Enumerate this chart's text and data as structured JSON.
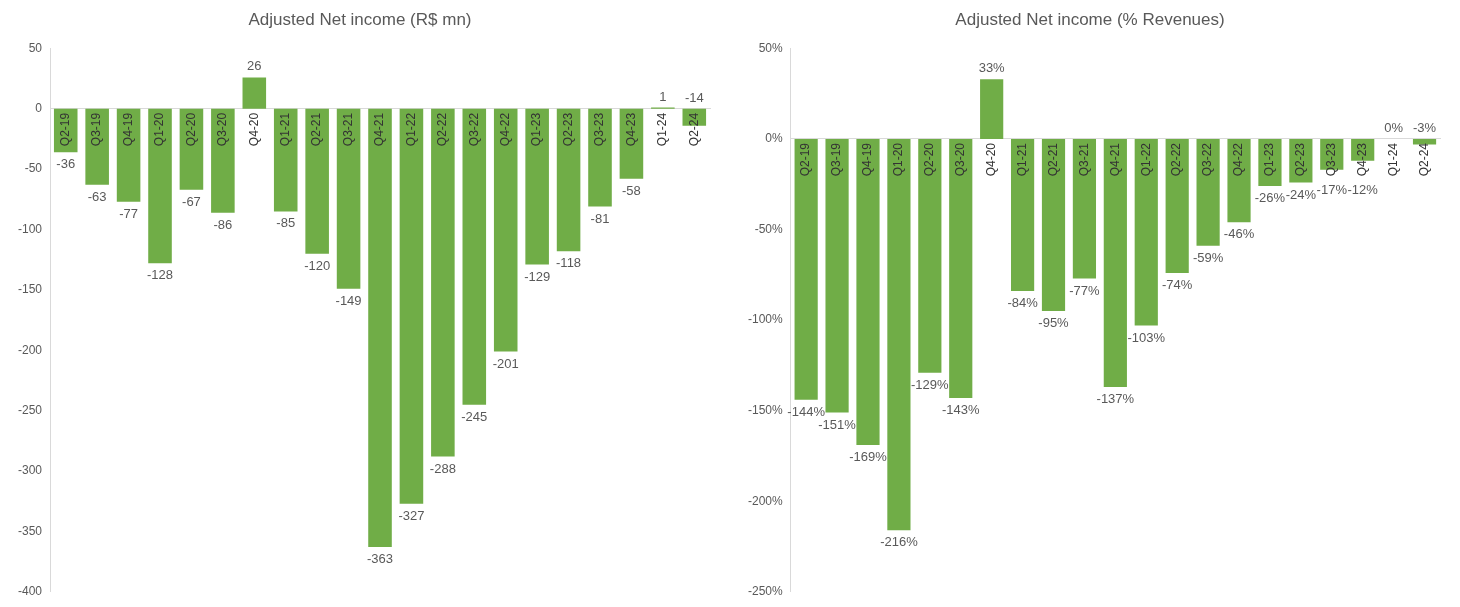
{
  "chart_data": [
    {
      "type": "bar",
      "title": "Adjusted Net income (R$ mn)",
      "categories": [
        "Q2-19",
        "Q3-19",
        "Q4-19",
        "Q1-20",
        "Q2-20",
        "Q3-20",
        "Q4-20",
        "Q1-21",
        "Q2-21",
        "Q3-21",
        "Q4-21",
        "Q1-22",
        "Q2-22",
        "Q3-22",
        "Q4-22",
        "Q1-23",
        "Q2-23",
        "Q3-23",
        "Q4-23",
        "Q1-24",
        "Q2-24"
      ],
      "series": [
        {
          "color": "#70ad47",
          "values": [
            -36,
            -63,
            -77,
            -128,
            -67,
            -86,
            26,
            -85,
            -120,
            -149,
            -363,
            -327,
            -288,
            -245,
            -201,
            -129,
            -118,
            -81,
            -58,
            1,
            -14
          ]
        }
      ],
      "ylim": [
        -400,
        50
      ],
      "yticks": [
        -400,
        -350,
        -300,
        -250,
        -200,
        -150,
        -100,
        -50,
        0,
        50
      ],
      "grid": false,
      "legend": false,
      "data_labels": true
    },
    {
      "type": "bar",
      "title": "Adjusted Net income (% Revenues)",
      "categories": [
        "Q2-19",
        "Q3-19",
        "Q4-19",
        "Q1-20",
        "Q2-20",
        "Q3-20",
        "Q4-20",
        "Q1-21",
        "Q2-21",
        "Q3-21",
        "Q4-21",
        "Q1-22",
        "Q2-22",
        "Q3-22",
        "Q4-22",
        "Q1-23",
        "Q2-23",
        "Q3-23",
        "Q4-23",
        "Q1-24",
        "Q2-24"
      ],
      "series": [
        {
          "color": "#70ad47",
          "values": [
            -144,
            -151,
            -169,
            -216,
            -129,
            -143,
            33,
            -84,
            -95,
            -77,
            -137,
            -103,
            -74,
            -59,
            -46,
            -26,
            -24,
            -17,
            -12,
            0,
            -3
          ],
          "value_labels": [
            "-144%",
            "-151%",
            "-169%",
            "-216%",
            "-129%",
            "-143%",
            "33%",
            "-84%",
            "-95%",
            "-77%",
            "-137%",
            "-103%",
            "-74%",
            "-59%",
            "-46%",
            "-26%",
            "-24%",
            "-17%",
            "-12%",
            "0%",
            "-3%"
          ]
        }
      ],
      "ylim": [
        -250,
        50
      ],
      "yticks": [
        {
          "value": -250,
          "label": "-250%"
        },
        {
          "value": -200,
          "label": "-200%"
        },
        {
          "value": -150,
          "label": "-150%"
        },
        {
          "value": -100,
          "label": "-100%"
        },
        {
          "value": -50,
          "label": "-50%"
        },
        {
          "value": 0,
          "label": "0%"
        },
        {
          "value": 50,
          "label": "50%"
        }
      ],
      "grid": false,
      "legend": false
    }
  ]
}
